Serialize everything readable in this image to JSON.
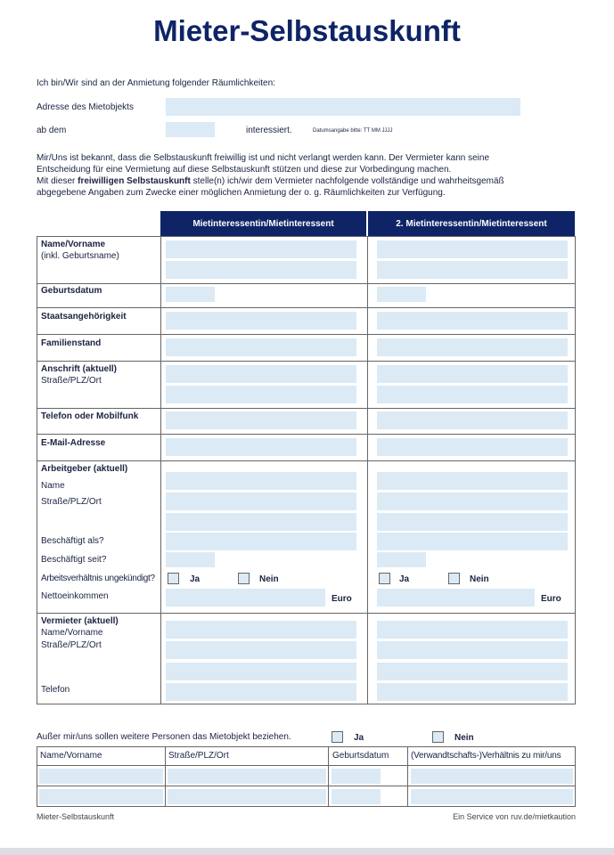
{
  "title": "Mieter-Selbstauskunft",
  "intro": "Ich bin/Wir sind an der Anmietung folgender Räumlichkeiten:",
  "address_label": "Adresse des Mietobjekts",
  "from_label": "ab dem",
  "interested": "interessiert.",
  "date_hint": "Datumsangabe bitte: TT MM JJJJ",
  "para": [
    "Mir/Uns ist bekannt, dass die Selbstauskunft freiwillig ist und nicht verlangt werden kann. Der Vermieter kann seine",
    "Entscheidung für eine Vermietung auf diese Selbstauskunft stützen und diese zur Vorbedingung machen."
  ],
  "para3_pre": "Mit dieser ",
  "para3_bold": "freiwilligen Selbstauskunft",
  "para3_post": " stelle(n) ich/wir dem Vermieter nachfolgende vollständige und wahrheitsgemäß",
  "para4": "abgegebene Angaben zum Zwecke einer möglichen Anmietung der o. g. Räumlichkeiten zur Verfügung.",
  "table": {
    "col1": "Mietinteressentin/Mietinteressent",
    "col2": "2. Mietinteressentin/Mietinteressent",
    "name": "Name/Vorname",
    "name_sub": "(inkl. Geburtsname)",
    "birth": "Geburtsdatum",
    "nation": "Staatsangehörigkeit",
    "family": "Familienstand",
    "address": "Anschrift (aktuell)",
    "address_sub": "Straße/PLZ/Ort",
    "phone": "Telefon oder Mobilfunk",
    "email": "E-Mail-Adresse",
    "employer": "Arbeitgeber (aktuell)",
    "emp_name": "Name",
    "emp_addr": "Straße/PLZ/Ort",
    "emp_as": "Beschäftigt als?",
    "emp_since": "Beschäftigt seit?",
    "emp_unterminated": "Arbeitsverhältnis ungekündigt?",
    "yes": "Ja",
    "no": "Nein",
    "net": "Nettoeinkommen",
    "euro": "Euro",
    "landlord": "Vermieter (aktuell)",
    "ll_name": "Name/Vorname",
    "ll_addr": "Straße/PLZ/Ort",
    "ll_phone": "Telefon"
  },
  "others": {
    "question": "Außer mir/uns sollen weitere Personen das Mietobjekt beziehen.",
    "yes": "Ja",
    "no": "Nein",
    "headers": [
      "Name/Vorname",
      "Straße/PLZ/Ort",
      "Geburtsdatum",
      "(Verwandtschafts-)Verhältnis zu mir/uns"
    ]
  },
  "footer": {
    "left": "Mieter-Selbstauskunft",
    "right": "Ein Service von ruv.de/mietkaution"
  }
}
